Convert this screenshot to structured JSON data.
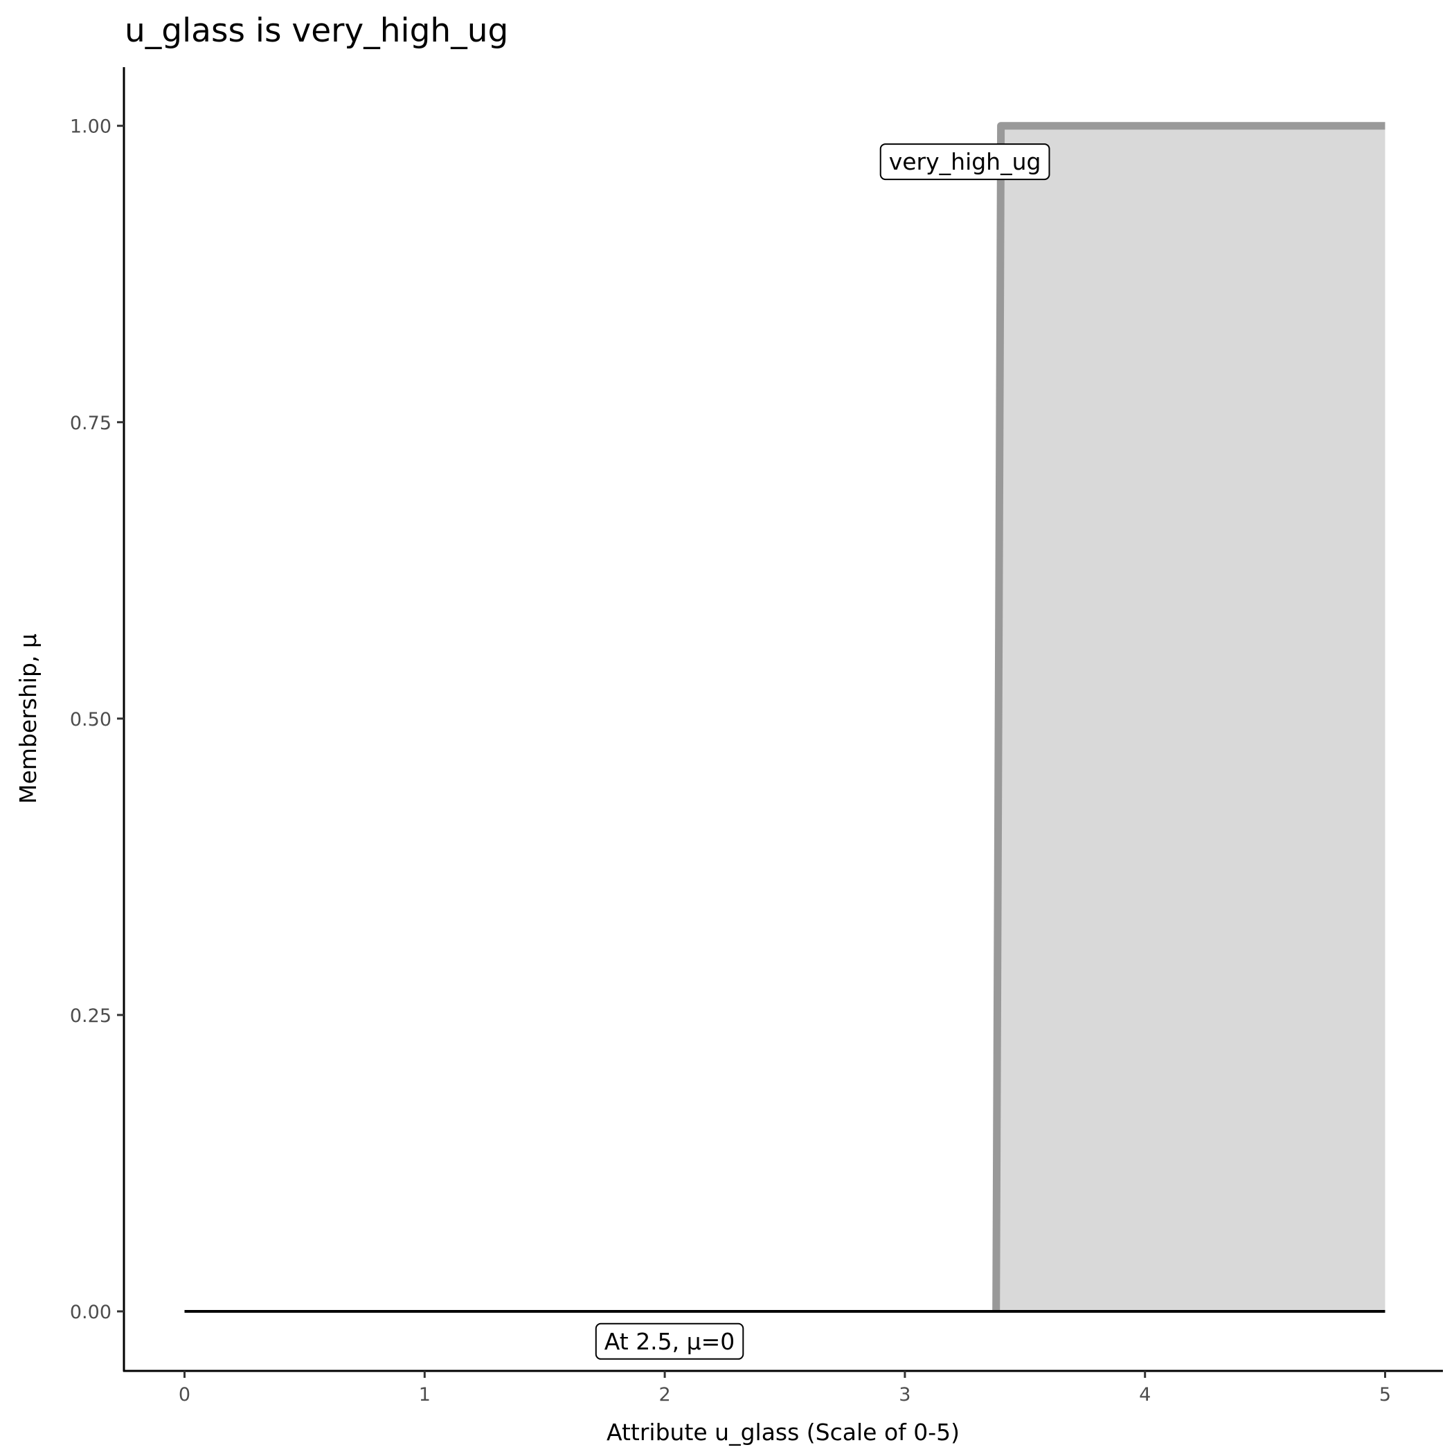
{
  "chart_data": {
    "type": "area",
    "title": "u_glass is very_high_ug",
    "xlabel": "Attribute u_glass (Scale of 0-5)",
    "ylabel": "Membership, μ",
    "xlim": [
      -0.25,
      5.25
    ],
    "ylim": [
      -0.05,
      1.05
    ],
    "x_ticks": [
      "0",
      "1",
      "2",
      "3",
      "4",
      "5"
    ],
    "y_ticks": [
      "0.00",
      "0.25",
      "0.50",
      "0.75",
      "1.00"
    ],
    "grid": false,
    "series": [
      {
        "name": "very_high_ug",
        "x": [
          3.38,
          3.4,
          5
        ],
        "y": [
          0,
          1,
          1
        ],
        "fill": "#d9d9d9",
        "line_color": "#999999"
      }
    ],
    "reference_line": {
      "x": [
        0,
        5
      ],
      "y": [
        0,
        0
      ],
      "color": "#000000"
    },
    "annotations": [
      {
        "text": "very_high_ug",
        "x": 3.25,
        "y": 0.97
      },
      {
        "text": "At 2.5, μ=0",
        "x": 2.02,
        "y": -0.025
      }
    ]
  }
}
